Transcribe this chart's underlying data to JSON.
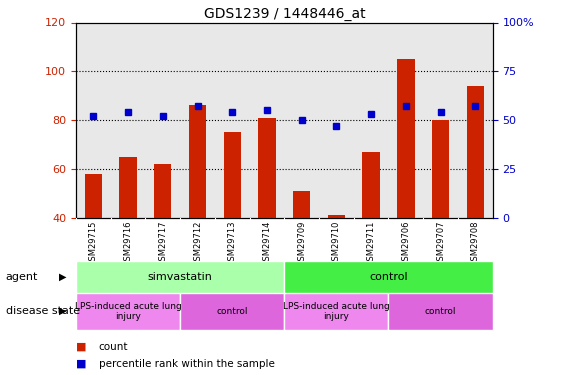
{
  "title": "GDS1239 / 1448446_at",
  "samples": [
    "GSM29715",
    "GSM29716",
    "GSM29717",
    "GSM29712",
    "GSM29713",
    "GSM29714",
    "GSM29709",
    "GSM29710",
    "GSM29711",
    "GSM29706",
    "GSM29707",
    "GSM29708"
  ],
  "bar_values": [
    58,
    65,
    62,
    86,
    75,
    81,
    51,
    41,
    67,
    105,
    80,
    94
  ],
  "dot_values": [
    52,
    54,
    52,
    57,
    54,
    55,
    50,
    47,
    53,
    57,
    54,
    57
  ],
  "bar_color": "#cc2200",
  "dot_color": "#0000cc",
  "left_ylim": [
    40,
    120
  ],
  "right_ylim": [
    0,
    100
  ],
  "left_yticks": [
    40,
    60,
    80,
    100,
    120
  ],
  "right_yticks": [
    0,
    25,
    50,
    75,
    100
  ],
  "right_yticklabels": [
    "0",
    "25",
    "50",
    "75",
    "100%"
  ],
  "left_ytick_color": "#cc2200",
  "right_ytick_color": "#0000cc",
  "grid_values": [
    60,
    80,
    100
  ],
  "agent_groups": [
    {
      "label": "simvastatin",
      "start": 0,
      "end": 6,
      "color": "#aaffaa"
    },
    {
      "label": "control",
      "start": 6,
      "end": 12,
      "color": "#44ee44"
    }
  ],
  "disease_groups": [
    {
      "label": "LPS-induced acute lung\ninjury",
      "start": 0,
      "end": 3,
      "color": "#ee88ee"
    },
    {
      "label": "control",
      "start": 3,
      "end": 6,
      "color": "#dd66dd"
    },
    {
      "label": "LPS-induced acute lung\ninjury",
      "start": 6,
      "end": 9,
      "color": "#ee88ee"
    },
    {
      "label": "control",
      "start": 9,
      "end": 12,
      "color": "#dd66dd"
    }
  ],
  "agent_label": "agent",
  "disease_label": "disease state",
  "legend_items": [
    {
      "label": "count",
      "color": "#cc2200"
    },
    {
      "label": "percentile rank within the sample",
      "color": "#0000cc"
    }
  ],
  "bar_width": 0.5,
  "background_color": "#ffffff",
  "plot_bg_color": "#e8e8e8"
}
